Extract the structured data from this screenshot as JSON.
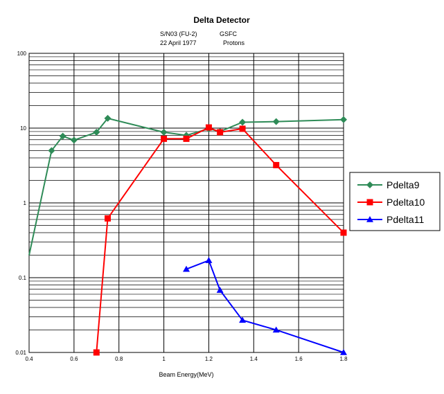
{
  "chart_data": {
    "type": "line",
    "title": "Delta Detector",
    "subtitle_left": [
      "S/N03 (FU-2)",
      "22 April 1977"
    ],
    "subtitle_right": [
      "GSFC",
      "Protons"
    ],
    "xlabel": "Beam Energy(MeV)",
    "ylabel": "",
    "xlim": [
      0.4,
      1.8
    ],
    "ylim": [
      0.01,
      100
    ],
    "y_scale": "log",
    "grid": true,
    "legend_position": "right",
    "x_ticks": [
      "0.4",
      "0.6",
      "0.8",
      "1",
      "1.2",
      "1.4",
      "1.6",
      "1.8"
    ],
    "y_ticks": [
      "0.01",
      "0.1",
      "1",
      "10",
      "100"
    ],
    "series": [
      {
        "name": "Pdelta9",
        "color": "#2e8b57",
        "marker": "diamond",
        "x": [
          0.4,
          0.5,
          0.55,
          0.6,
          0.7,
          0.75,
          1.0,
          1.1,
          1.2,
          1.25,
          1.35,
          1.5,
          1.8
        ],
        "y": [
          0.2,
          5.0,
          7.8,
          6.9,
          8.8,
          13.5,
          8.8,
          8.0,
          9.8,
          9.0,
          12.0,
          12.2,
          13.0
        ]
      },
      {
        "name": "Pdelta10",
        "color": "#ff0000",
        "marker": "square",
        "x": [
          0.7,
          0.75,
          1.0,
          1.1,
          1.2,
          1.25,
          1.35,
          1.5,
          1.8
        ],
        "y": [
          0.01,
          0.62,
          7.2,
          7.2,
          10.2,
          8.8,
          9.8,
          3.2,
          0.4
        ]
      },
      {
        "name": "Pdelta11",
        "color": "#0000ff",
        "marker": "triangle",
        "x": [
          1.1,
          1.2,
          1.25,
          1.35,
          1.5,
          1.8
        ],
        "y": [
          0.13,
          0.17,
          0.068,
          0.027,
          0.02,
          0.01
        ]
      }
    ]
  }
}
